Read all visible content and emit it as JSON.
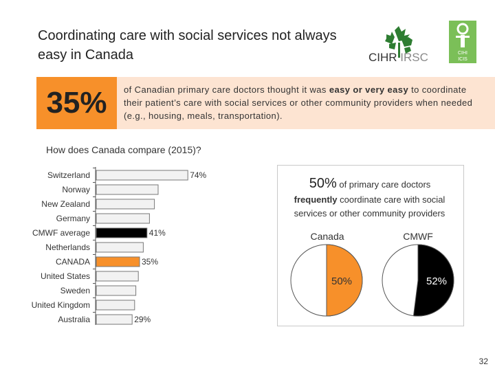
{
  "title": "Coordinating care with social services not always easy in Canada",
  "logos": {
    "cihr_label": "CIHR",
    "irsc_label": "IRSC",
    "cihi_letters_top": "CIHI",
    "cihi_letters_bottom": "ICIS"
  },
  "banner": {
    "percent": "35%",
    "text_before": "of Canadian primary care doctors thought it was ",
    "text_bold": "easy or very easy",
    "text_after": " to coordinate their patient’s care with social services or other community providers when needed (e.g., housing, meals, transportation)."
  },
  "question": "How does Canada compare (2015)?",
  "right_panel": {
    "stat_big": "50%",
    "stat_small": " of primary care doctors",
    "stat_bold": "frequently",
    "stat_rest": " coordinate care with social services or other community providers",
    "pie_labels": [
      "Canada",
      "CMWF"
    ]
  },
  "page_number": "32",
  "colors": {
    "orange": "#f7902a",
    "banner_bg": "#fde4d2",
    "bar_default": "#f2f2f2",
    "black": "#000000",
    "green": "#7bbf58"
  },
  "chart_data": [
    {
      "type": "bar",
      "orientation": "horizontal",
      "title": "How does Canada compare (2015)?",
      "categories": [
        "Switzerland",
        "Norway",
        "New Zealand",
        "Germany",
        "CMWF average",
        "Netherlands",
        "CANADA",
        "United States",
        "Sweden",
        "United Kingdom",
        "Australia"
      ],
      "values": [
        74,
        50,
        47,
        43,
        41,
        38,
        35,
        34,
        32,
        31,
        29
      ],
      "value_labels": [
        "74%",
        "",
        "",
        "",
        "41%",
        "",
        "35%",
        "",
        "",
        "",
        "29%"
      ],
      "highlight": {
        "CMWF average": "#000000",
        "CANADA": "#f7902a"
      },
      "xlim": [
        0,
        100
      ]
    },
    {
      "type": "pie",
      "name": "Canada",
      "slices": [
        {
          "label": "frequently",
          "value": 50,
          "text": "50%"
        },
        {
          "label": "other",
          "value": 50,
          "text": ""
        }
      ]
    },
    {
      "type": "pie",
      "name": "CMWF",
      "slices": [
        {
          "label": "frequently",
          "value": 52,
          "text": "52%"
        },
        {
          "label": "other",
          "value": 48,
          "text": ""
        }
      ]
    }
  ]
}
